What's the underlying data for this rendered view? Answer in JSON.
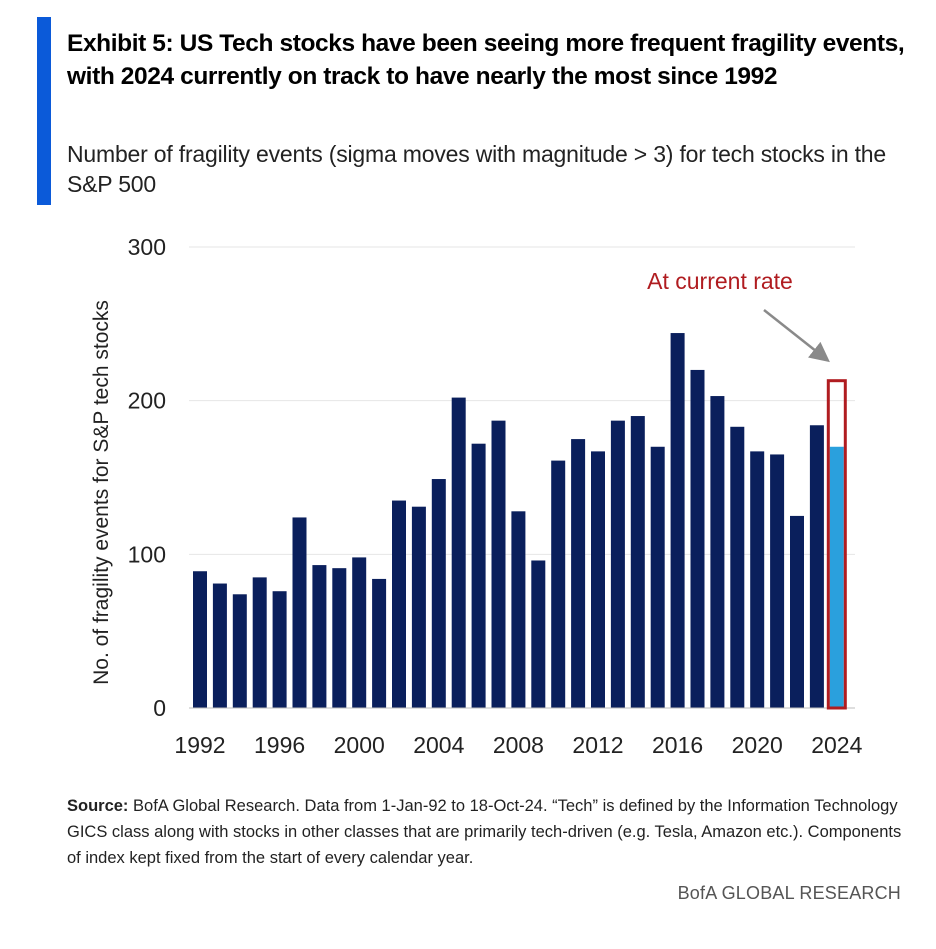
{
  "header": {
    "title": "Exhibit 5: US Tech stocks have been seeing more frequent fragility events, with 2024 currently on track to have nearly the most since 1992",
    "subtitle": "Number of fragility events (sigma moves with magnitude > 3) for tech stocks in the S&P 500"
  },
  "colors": {
    "accent": "#0b5ad9",
    "bar": "#0a1f5c",
    "bar_current": "#2aa0dd",
    "projection_outline": "#b01c20",
    "annotation_text": "#b01c20",
    "arrow": "#8a8a8a"
  },
  "chart_data": {
    "type": "bar",
    "title": "",
    "ylabel": "No. of fragility events for S&P tech stocks",
    "xlabel": "",
    "ylim": [
      0,
      300
    ],
    "yticks": [
      0,
      100,
      200,
      300
    ],
    "xtick_labels": [
      "1992",
      "1996",
      "2000",
      "2004",
      "2008",
      "2012",
      "2016",
      "2020",
      "2024"
    ],
    "categories": [
      "1992",
      "1993",
      "1994",
      "1995",
      "1996",
      "1997",
      "1998",
      "1999",
      "2000",
      "2001",
      "2002",
      "2003",
      "2004",
      "2005",
      "2006",
      "2007",
      "2008",
      "2009",
      "2010",
      "2011",
      "2012",
      "2013",
      "2014",
      "2015",
      "2016",
      "2017",
      "2018",
      "2019",
      "2020",
      "2021",
      "2022",
      "2023",
      "2024"
    ],
    "values": [
      89,
      81,
      74,
      85,
      76,
      124,
      93,
      91,
      98,
      84,
      135,
      131,
      149,
      202,
      172,
      187,
      128,
      96,
      161,
      175,
      167,
      187,
      190,
      170,
      244,
      220,
      203,
      183,
      167,
      165,
      125,
      184,
      170
    ],
    "projection": {
      "category": "2024",
      "value": 213,
      "label": "At current rate"
    },
    "grid": true
  },
  "footer": {
    "source_label": "Source:",
    "source_text": " BofA Global Research. Data from 1-Jan-92 to 18-Oct-24. “Tech” is defined by the Information Technology GICS class along with stocks in other classes that are primarily tech-driven (e.g. Tesla, Amazon etc.). Components of index kept fixed from the start of every calendar year.",
    "brand": "BofA GLOBAL RESEARCH"
  }
}
